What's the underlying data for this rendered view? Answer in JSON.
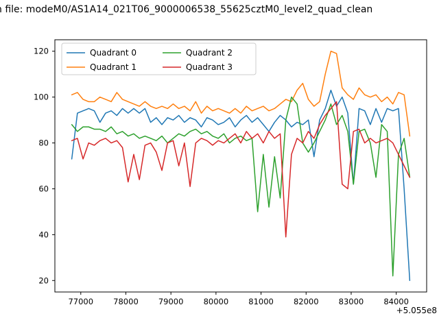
{
  "chart_data": {
    "type": "line",
    "title": "n file: modeM0/AS1A14_021T06_9000006538_55625cztM0_level2_quad_clean",
    "xlabel": "",
    "ylabel": "",
    "xlim": [
      76425,
      84675
    ],
    "ylim": [
      15,
      125
    ],
    "xticks": [
      77000,
      78000,
      79000,
      80000,
      81000,
      82000,
      83000,
      84000
    ],
    "yticks": [
      20,
      40,
      60,
      80,
      100,
      120
    ],
    "offset_text": "+5.055e8",
    "grid": false,
    "legend_position": "upper-left",
    "x": [
      76800,
      76925,
      77050,
      77175,
      77300,
      77425,
      77550,
      77675,
      77800,
      77925,
      78050,
      78175,
      78300,
      78425,
      78550,
      78675,
      78800,
      78925,
      79050,
      79175,
      79300,
      79425,
      79550,
      79675,
      79800,
      79925,
      80050,
      80175,
      80300,
      80425,
      80550,
      80675,
      80800,
      80925,
      81050,
      81175,
      81300,
      81425,
      81550,
      81675,
      81800,
      81925,
      82050,
      82175,
      82300,
      82425,
      82550,
      82675,
      82800,
      82925,
      83050,
      83175,
      83300,
      83425,
      83550,
      83675,
      83800,
      83925,
      84050,
      84175,
      84300
    ],
    "series": [
      {
        "name": "Quadrant 0",
        "color": "#1f77b4",
        "values": [
          73,
          93,
          94,
          95,
          94,
          89,
          93,
          94,
          92,
          95,
          93,
          95,
          93,
          95,
          89,
          91,
          88,
          91,
          90,
          92,
          89,
          91,
          90,
          87,
          91,
          90,
          88,
          89,
          91,
          87,
          90,
          92,
          89,
          91,
          88,
          85,
          89,
          92,
          90,
          87,
          89,
          88,
          90,
          74,
          90,
          95,
          103,
          96,
          100,
          93,
          62,
          95,
          94,
          88,
          95,
          89,
          95,
          94,
          95,
          60,
          20
        ]
      },
      {
        "name": "Quadrant 1",
        "color": "#ff7f0e",
        "values": [
          101,
          102,
          99,
          98,
          98,
          100,
          99,
          98,
          102,
          99,
          98,
          97,
          96,
          98,
          96,
          95,
          96,
          95,
          97,
          95,
          96,
          94,
          98,
          93,
          96,
          94,
          95,
          94,
          93,
          95,
          93,
          96,
          94,
          95,
          96,
          94,
          95,
          97,
          99,
          98,
          103,
          106,
          99,
          96,
          98,
          110,
          120,
          119,
          104,
          101,
          99,
          104,
          101,
          100,
          101,
          98,
          100,
          97,
          102,
          101,
          83
        ]
      },
      {
        "name": "Quadrant 2",
        "color": "#2ca02c",
        "values": [
          88,
          85,
          87,
          87,
          86,
          86,
          85,
          87,
          84,
          85,
          83,
          84,
          82,
          83,
          82,
          81,
          83,
          80,
          82,
          84,
          83,
          85,
          86,
          84,
          85,
          83,
          82,
          84,
          80,
          82,
          83,
          81,
          82,
          50,
          75,
          52,
          74,
          56,
          90,
          100,
          97,
          80,
          76,
          80,
          85,
          90,
          97,
          88,
          92,
          85,
          62,
          85,
          86,
          80,
          65,
          88,
          85,
          22,
          75,
          82,
          65
        ]
      },
      {
        "name": "Quadrant 3",
        "color": "#d62728",
        "values": [
          81,
          82,
          73,
          80,
          79,
          81,
          82,
          80,
          81,
          78,
          63,
          75,
          64,
          79,
          80,
          76,
          68,
          80,
          81,
          70,
          80,
          61,
          80,
          82,
          81,
          79,
          81,
          80,
          82,
          84,
          80,
          85,
          82,
          84,
          80,
          85,
          82,
          84,
          39,
          75,
          82,
          80,
          85,
          82,
          88,
          92,
          95,
          98,
          62,
          60,
          85,
          86,
          80,
          82,
          80,
          81,
          82,
          80,
          75,
          70,
          65
        ]
      }
    ]
  }
}
